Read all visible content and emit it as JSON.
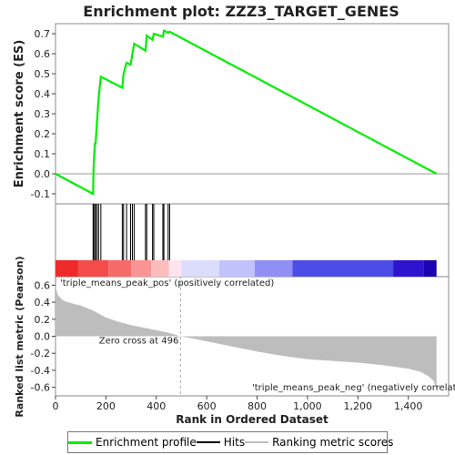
{
  "chart_data": {
    "type": "line",
    "title": "Enrichment plot: ZZZ3_TARGET_GENES",
    "xlabel": "Rank in Ordered Dataset",
    "xlim": [
      0,
      1560
    ],
    "x_ticks": [
      0,
      200,
      400,
      600,
      800,
      1000,
      1200,
      1400
    ],
    "x_tick_labels": [
      "0",
      "200",
      "400",
      "600",
      "800",
      "1,000",
      "1,200",
      "1,400"
    ],
    "top_panel": {
      "ylabel": "Enrichment score (ES)",
      "ylim": [
        -0.15,
        0.75
      ],
      "y_ticks": [
        -0.1,
        0.0,
        0.1,
        0.2,
        0.3,
        0.4,
        0.5,
        0.6,
        0.7
      ],
      "y_tick_labels": [
        "-0.1",
        "0.0",
        "0.1",
        "0.2",
        "0.3",
        "0.4",
        "0.5",
        "0.6",
        "0.7"
      ],
      "series": [
        {
          "name": "Enrichment profile",
          "color": "#00ee00",
          "x": [
            0,
            149,
            151,
            156,
            159,
            165,
            171,
            180,
            265,
            270,
            282,
            298,
            305,
            312,
            357,
            362,
            385,
            390,
            426,
            430,
            447,
            453,
            1512
          ],
          "y": [
            0.0,
            -0.1,
            0.03,
            0.15,
            0.15,
            0.27,
            0.38,
            0.485,
            0.43,
            0.5,
            0.555,
            0.545,
            0.6,
            0.65,
            0.615,
            0.69,
            0.67,
            0.7,
            0.685,
            0.715,
            0.705,
            0.71,
            0.0
          ]
        }
      ]
    },
    "hits": {
      "name": "Hits",
      "color": "#000000",
      "x": [
        149,
        151,
        156,
        159,
        165,
        171,
        180,
        265,
        270,
        282,
        298,
        305,
        312,
        357,
        362,
        385,
        390,
        426,
        430,
        447,
        453
      ]
    },
    "bottom_panel": {
      "ylabel": "Ranked list metric (Pearson)",
      "ylim": [
        -0.7,
        0.7
      ],
      "y_ticks": [
        -0.6,
        -0.4,
        -0.2,
        0.0,
        0.2,
        0.4,
        0.6
      ],
      "y_tick_labels": [
        "-0.6",
        "-0.4",
        "-0.2",
        "0.0",
        "0.2",
        "0.4",
        "0.6"
      ],
      "series": [
        {
          "name": "Ranking metric scores",
          "color": "#bdbdbd",
          "x": [
            0,
            10,
            30,
            60,
            100,
            150,
            200,
            250,
            300,
            350,
            400,
            450,
            496,
            550,
            600,
            650,
            700,
            800,
            900,
            1000,
            1100,
            1200,
            1300,
            1400,
            1450,
            1480,
            1500,
            1512
          ],
          "y": [
            0.58,
            0.48,
            0.42,
            0.39,
            0.36,
            0.3,
            0.22,
            0.17,
            0.13,
            0.1,
            0.07,
            0.04,
            0.0,
            -0.03,
            -0.06,
            -0.09,
            -0.12,
            -0.18,
            -0.23,
            -0.27,
            -0.29,
            -0.31,
            -0.34,
            -0.38,
            -0.42,
            -0.47,
            -0.52,
            -0.62
          ]
        }
      ],
      "zero_cross_label": "Zero cross at 496",
      "zero_cross_x": 496,
      "pos_label": "'triple_means_peak_pos' (positively correlated)",
      "neg_label": "'triple_means_peak_neg' (negatively correlated)"
    },
    "heat_bar": {
      "x_end": 1512,
      "segments": [
        {
          "to": 90,
          "color": "#ee2a2a"
        },
        {
          "to": 210,
          "color": "#f44b4b"
        },
        {
          "to": 300,
          "color": "#f66a6a"
        },
        {
          "to": 380,
          "color": "#f99494"
        },
        {
          "to": 450,
          "color": "#fcbcbc"
        },
        {
          "to": 500,
          "color": "#ffe4ef"
        },
        {
          "to": 650,
          "color": "#dcdcfd"
        },
        {
          "to": 790,
          "color": "#c2c2fb"
        },
        {
          "to": 940,
          "color": "#8f8ff5"
        },
        {
          "to": 1340,
          "color": "#4c4ce6"
        },
        {
          "to": 1460,
          "color": "#2e14cf"
        },
        {
          "to": 1512,
          "color": "#1a04b0"
        }
      ]
    },
    "legend": {
      "placement": "bottom",
      "items": [
        {
          "label": "Enrichment profile",
          "color": "#00ee00"
        },
        {
          "label": "Hits",
          "color": "#000000"
        },
        {
          "label": "Ranking metric scores",
          "color": "#bdbdbd"
        }
      ]
    }
  }
}
